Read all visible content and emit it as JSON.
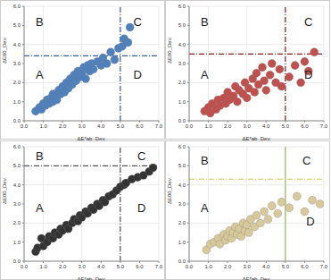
{
  "chart_data": [
    {
      "type": "scatter",
      "color": "#4f81bd",
      "marker": "circle",
      "grid": true,
      "xlabel": "ΔE*ab_Dev.",
      "ylabel": "ΔE00_Dev.",
      "xlim": [
        0,
        7
      ],
      "ylim": [
        0,
        6
      ],
      "xticks": [
        {
          "value": 0,
          "label": "0.0"
        },
        {
          "value": 1,
          "label": "1.0"
        },
        {
          "value": 2,
          "label": "2.0"
        },
        {
          "value": 3,
          "label": "3.0"
        },
        {
          "value": 4,
          "label": "4.0"
        },
        {
          "value": 5,
          "label": "5.0"
        },
        {
          "value": 6,
          "label": "6.0"
        },
        {
          "value": 7,
          "label": "7.0"
        }
      ],
      "yticks": [
        {
          "value": 0,
          "label": "0.0"
        },
        {
          "value": 1,
          "label": "1.0"
        },
        {
          "value": 2,
          "label": "2.0"
        },
        {
          "value": 3,
          "label": "3.0"
        },
        {
          "value": 4,
          "label": "4.0"
        },
        {
          "value": 5,
          "label": "5.0"
        },
        {
          "value": 6,
          "label": "6.0"
        }
      ],
      "reference_lines": [
        {
          "axis": "x",
          "value": 5,
          "color": "#3a5f9e",
          "line_style": "dashdot"
        },
        {
          "axis": "y",
          "value": 3.4,
          "color": "#3a5f9e",
          "line_style": "dashdot"
        }
      ],
      "annotations": [
        {
          "text": "A",
          "x": 0.8,
          "y": 2.4
        },
        {
          "text": "B",
          "x": 0.8,
          "y": 5.2
        },
        {
          "text": "C",
          "x": 5.9,
          "y": 5.2
        },
        {
          "text": "D",
          "x": 5.9,
          "y": 2.4
        }
      ],
      "x": [
        0.6,
        0.8,
        0.9,
        1.0,
        1.1,
        1.2,
        1.3,
        1.4,
        1.5,
        1.5,
        1.6,
        1.7,
        1.8,
        1.9,
        2.0,
        2.1,
        2.2,
        2.3,
        2.4,
        2.5,
        2.6,
        2.7,
        2.8,
        2.9,
        3.0,
        3.1,
        3.2,
        3.3,
        3.4,
        3.5,
        3.6,
        3.8,
        4.0,
        4.1,
        4.3,
        4.5,
        4.7,
        4.9,
        5.1,
        5.2,
        5.4,
        5.5
      ],
      "values": [
        0.5,
        0.7,
        0.6,
        0.9,
        0.8,
        1.1,
        0.9,
        1.2,
        1.0,
        1.4,
        1.3,
        1.1,
        1.6,
        1.4,
        1.8,
        1.5,
        2.0,
        1.7,
        2.2,
        1.9,
        2.4,
        2.1,
        2.6,
        2.3,
        2.5,
        2.8,
        2.2,
        2.9,
        2.6,
        3.0,
        2.7,
        3.1,
        2.9,
        3.3,
        3.0,
        3.6,
        3.2,
        3.8,
        3.9,
        4.3,
        4.1,
        4.9
      ]
    },
    {
      "type": "scatter",
      "color": "#c0504d",
      "marker": "circle",
      "grid": true,
      "xlabel": "ΔE*ab_Dev.",
      "ylabel": "ΔE00_Dev.",
      "xlim": [
        0,
        7
      ],
      "ylim": [
        0,
        6
      ],
      "xticks": [
        {
          "value": 0,
          "label": "0.0"
        },
        {
          "value": 1,
          "label": "1.0"
        },
        {
          "value": 2,
          "label": "2.0"
        },
        {
          "value": 3,
          "label": "3.0"
        },
        {
          "value": 4,
          "label": "4.0"
        },
        {
          "value": 5,
          "label": "5.0"
        },
        {
          "value": 6,
          "label": "6.0"
        },
        {
          "value": 7,
          "label": "7.0"
        }
      ],
      "yticks": [
        {
          "value": 0,
          "label": "0.0"
        },
        {
          "value": 1,
          "label": "1.0"
        },
        {
          "value": 2,
          "label": "2.0"
        },
        {
          "value": 3,
          "label": "3.0"
        },
        {
          "value": 4,
          "label": "4.0"
        },
        {
          "value": 5,
          "label": "5.0"
        },
        {
          "value": 6,
          "label": "6.0"
        }
      ],
      "reference_lines": [
        {
          "axis": "x",
          "value": 5,
          "color": "#8b1a1a",
          "line_style": "dashdot"
        },
        {
          "axis": "y",
          "value": 3.5,
          "color": "#8b1a1a",
          "line_style": "dashdot"
        }
      ],
      "annotations": [
        {
          "text": "A",
          "x": 0.8,
          "y": 2.4
        },
        {
          "text": "B",
          "x": 0.8,
          "y": 5.2
        },
        {
          "text": "C",
          "x": 6.2,
          "y": 5.2
        },
        {
          "text": "D",
          "x": 6.2,
          "y": 2.4
        }
      ],
      "x": [
        0.8,
        1.0,
        1.1,
        1.2,
        1.4,
        1.5,
        1.6,
        1.8,
        1.9,
        2.0,
        2.1,
        2.3,
        2.4,
        2.5,
        2.6,
        2.8,
        2.9,
        3.0,
        3.1,
        3.3,
        3.4,
        3.5,
        3.6,
        3.8,
        3.9,
        4.0,
        4.2,
        4.3,
        4.5,
        4.7,
        4.8,
        5.2,
        5.5,
        5.8,
        6.0,
        6.2,
        6.5
      ],
      "values": [
        0.5,
        0.7,
        0.4,
        0.9,
        0.6,
        1.1,
        0.8,
        1.2,
        0.9,
        1.5,
        1.1,
        1.3,
        1.8,
        1.0,
        1.6,
        1.4,
        2.0,
        1.2,
        1.7,
        2.2,
        1.5,
        2.5,
        1.9,
        2.8,
        2.1,
        1.6,
        2.4,
        3.0,
        2.0,
        2.7,
        1.8,
        2.3,
        2.9,
        2.0,
        3.1,
        2.6,
        3.6
      ]
    },
    {
      "type": "scatter",
      "color": "#333333",
      "marker": "circle",
      "grid": true,
      "xlabel": "ΔE*ab_Dev.",
      "ylabel": "ΔE00_Dev.",
      "xlim": [
        0,
        7
      ],
      "ylim": [
        0,
        6
      ],
      "xticks": [
        {
          "value": 0,
          "label": "0.0"
        },
        {
          "value": 1,
          "label": "1.0"
        },
        {
          "value": 2,
          "label": "2.0"
        },
        {
          "value": 3,
          "label": "3.0"
        },
        {
          "value": 4,
          "label": "4.0"
        },
        {
          "value": 5,
          "label": "5.0"
        },
        {
          "value": 6,
          "label": "6.0"
        },
        {
          "value": 7,
          "label": "7.0"
        }
      ],
      "yticks": [
        {
          "value": 0,
          "label": "0.0"
        },
        {
          "value": 1,
          "label": "1.0"
        },
        {
          "value": 2,
          "label": "2.0"
        },
        {
          "value": 3,
          "label": "3.0"
        },
        {
          "value": 4,
          "label": "4.0"
        },
        {
          "value": 5,
          "label": "5.0"
        },
        {
          "value": 6,
          "label": "6.0"
        }
      ],
      "reference_lines": [
        {
          "axis": "x",
          "value": 5,
          "color": "#555555",
          "line_style": "dashdot"
        },
        {
          "axis": "y",
          "value": 5,
          "color": "#555555",
          "line_style": "dashdot"
        }
      ],
      "annotations": [
        {
          "text": "A",
          "x": 0.8,
          "y": 2.8
        },
        {
          "text": "B",
          "x": 0.8,
          "y": 5.5
        },
        {
          "text": "C",
          "x": 6.1,
          "y": 5.5
        },
        {
          "text": "D",
          "x": 6.1,
          "y": 2.8
        }
      ],
      "x": [
        0.6,
        0.7,
        0.9,
        1.0,
        1.2,
        1.3,
        1.5,
        1.6,
        1.8,
        1.9,
        2.0,
        2.2,
        2.3,
        2.5,
        2.6,
        2.8,
        2.9,
        3.0,
        3.2,
        3.3,
        3.5,
        3.6,
        3.8,
        3.9,
        4.1,
        4.2,
        4.4,
        4.6,
        4.8,
        5.0,
        5.2,
        5.3,
        5.6,
        5.9,
        6.2,
        6.5,
        6.7
      ],
      "values": [
        0.5,
        0.7,
        1.2,
        0.8,
        1.0,
        1.3,
        1.2,
        1.5,
        1.4,
        1.7,
        1.6,
        1.9,
        1.7,
        2.0,
        2.2,
        2.1,
        2.4,
        2.3,
        2.6,
        2.5,
        2.8,
        2.7,
        3.0,
        2.9,
        3.2,
        3.1,
        3.4,
        3.5,
        3.7,
        3.9,
        4.0,
        4.1,
        4.3,
        4.4,
        4.5,
        4.7,
        4.9
      ]
    },
    {
      "type": "scatter",
      "color": "#d8c99b",
      "marker": "circle",
      "grid": true,
      "xlabel": "ΔE*ab_Dev.",
      "ylabel": "ΔE00_Dev.",
      "xlim": [
        0,
        7
      ],
      "ylim": [
        0,
        6
      ],
      "xticks": [
        {
          "value": 0,
          "label": "0.0"
        },
        {
          "value": 1,
          "label": "1.0"
        },
        {
          "value": 2,
          "label": "2.0"
        },
        {
          "value": 3,
          "label": "3.0"
        },
        {
          "value": 4,
          "label": "4.0"
        },
        {
          "value": 5,
          "label": "5.0"
        },
        {
          "value": 6,
          "label": "6.0"
        },
        {
          "value": 7,
          "label": "7.0"
        }
      ],
      "yticks": [
        {
          "value": 0,
          "label": "0.0"
        },
        {
          "value": 1,
          "label": "1.0"
        },
        {
          "value": 2,
          "label": "2.0"
        },
        {
          "value": 3,
          "label": "3.0"
        },
        {
          "value": 4,
          "label": "4.0"
        },
        {
          "value": 5,
          "label": "5.0"
        },
        {
          "value": 6,
          "label": "6.0"
        }
      ],
      "reference_lines": [
        {
          "axis": "x",
          "value": 5,
          "color": "#9bbb59",
          "line_style": "solid"
        },
        {
          "axis": "y",
          "value": 4.3,
          "color": "#c9c94f",
          "line_style": "dashdot"
        }
      ],
      "annotations": [
        {
          "text": "A",
          "x": 0.8,
          "y": 2.8
        },
        {
          "text": "B",
          "x": 0.8,
          "y": 5.3
        },
        {
          "text": "C",
          "x": 6.1,
          "y": 5.3
        },
        {
          "text": "D",
          "x": 6.3,
          "y": 2.1
        }
      ],
      "x": [
        0.9,
        1.1,
        1.3,
        1.5,
        1.6,
        1.8,
        1.9,
        2.0,
        2.1,
        2.2,
        2.3,
        2.4,
        2.5,
        2.6,
        2.7,
        2.8,
        2.9,
        3.0,
        3.1,
        3.2,
        3.4,
        3.5,
        3.7,
        3.9,
        4.1,
        4.3,
        4.6,
        4.8,
        5.2,
        5.6,
        6.0,
        6.4,
        6.8
      ],
      "values": [
        0.6,
        0.9,
        1.0,
        1.2,
        0.9,
        1.4,
        1.1,
        1.3,
        1.6,
        1.2,
        1.5,
        1.8,
        1.4,
        1.7,
        1.3,
        2.0,
        1.6,
        1.9,
        1.5,
        2.2,
        1.8,
        2.4,
        2.0,
        2.6,
        2.2,
        2.9,
        2.5,
        3.1,
        2.8,
        3.4,
        2.6,
        3.2,
        3.0
      ]
    }
  ]
}
